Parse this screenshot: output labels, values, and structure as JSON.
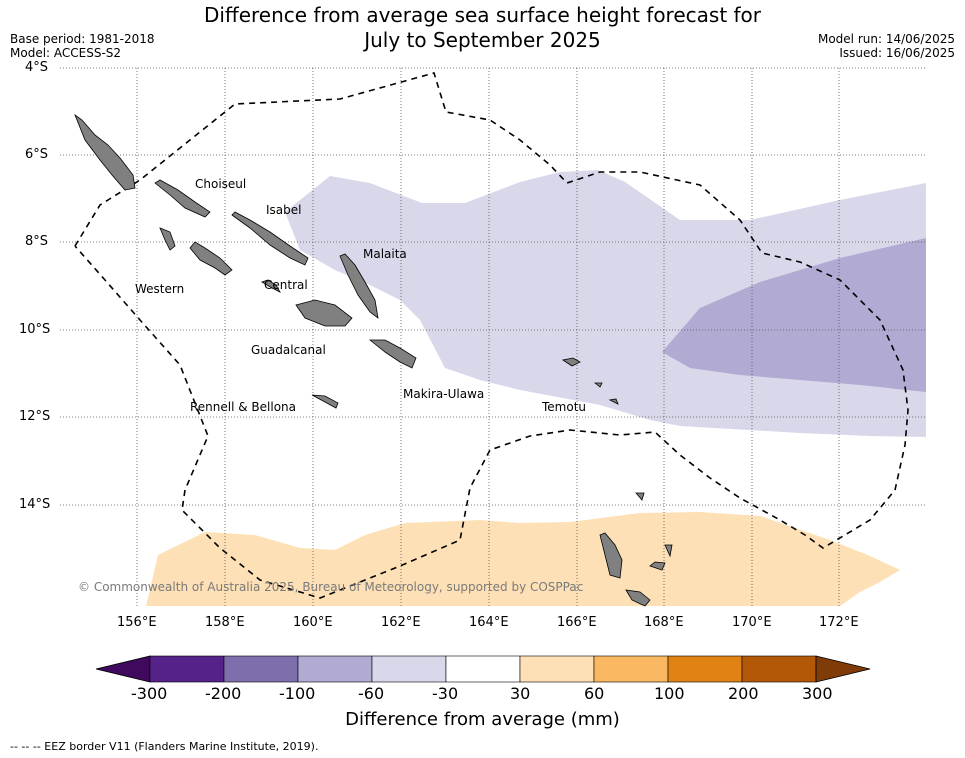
{
  "header": {
    "title_line1": "Difference from average sea surface height forecast for",
    "title_line2": "July to September 2025",
    "base_period": "Base period: 1981-2018",
    "model": "Model: ACCESS-S2",
    "model_run": "Model run: 14/06/2025",
    "issued": "Issued: 16/06/2025"
  },
  "map": {
    "lat_labels": [
      "4°S",
      "6°S",
      "8°S",
      "10°S",
      "12°S",
      "14°S"
    ],
    "lon_labels": [
      "156°E",
      "158°E",
      "160°E",
      "162°E",
      "164°E",
      "166°E",
      "168°E",
      "170°E",
      "172°E"
    ],
    "regions": [
      "Choiseul",
      "Isabel",
      "Malaita",
      "Western",
      "Central",
      "Guadalcanal",
      "Makira-Ulawa",
      "Rennell & Bellona",
      "Temotu"
    ],
    "copyright": "© Commonwealth of Australia 2025, Bureau of Meteorology, supported by COSPPac",
    "colors": {
      "land": "#808080",
      "anomaly_neg_small": "#d8d8ea",
      "anomaly_neg_mid": "#b1aad2",
      "anomaly_pos_small": "#fde0b6",
      "eez_border": "#000000"
    }
  },
  "legend": {
    "title": "Difference from average (mm)",
    "ticks": [
      "-300",
      "-200",
      "-100",
      "-60",
      "-30",
      "30",
      "60",
      "100",
      "200",
      "300"
    ],
    "colors": [
      "#3f0a5d",
      "#55228a",
      "#7e6fac",
      "#b1aad2",
      "#d8d8ea",
      "#ffffff",
      "#fde0b6",
      "#fbb862",
      "#e08214",
      "#b35806",
      "#7f3b08"
    ]
  },
  "footer": {
    "eez_note": "-- -- -- EEZ border V11 (Flanders Marine Institute, 2019)."
  }
}
